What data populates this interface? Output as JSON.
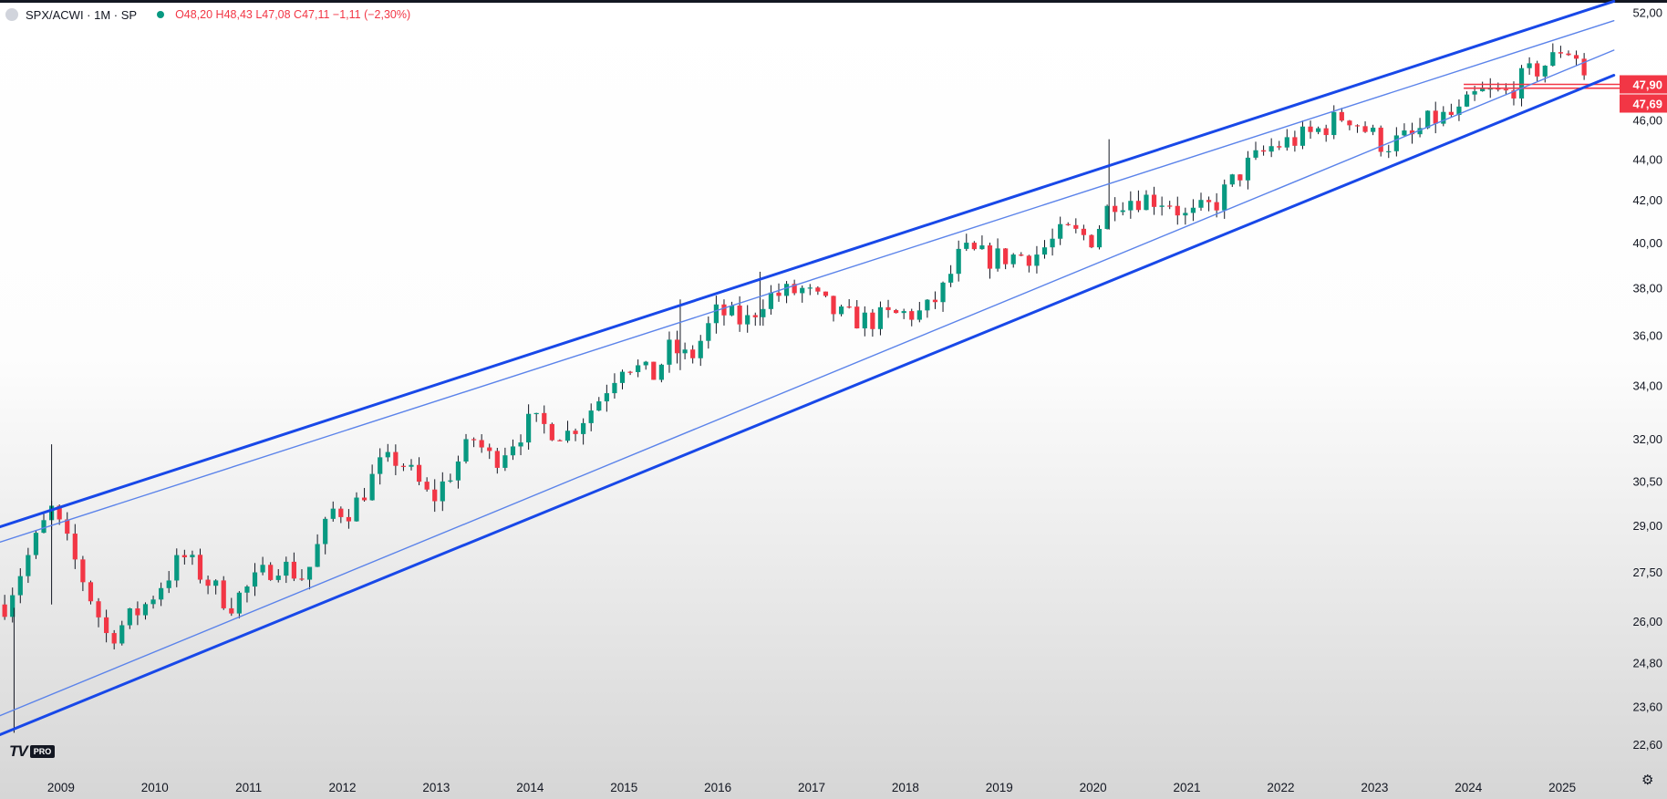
{
  "legend": {
    "symbol": "SPX/ACWI · 1M · SP",
    "ohlc": "O48,20 H48,43 L47,08 C47,11 −1,11 (−2,30%)"
  },
  "logo": {
    "mark": "TV",
    "badge": "PRO"
  },
  "chart_data": {
    "type": "candlestick",
    "y_scale": "log",
    "ylim": [
      22.0,
      52.4
    ],
    "xlim": [
      2008.35,
      2025.65
    ],
    "y_ticks": [
      "52,00",
      "47,90",
      "47,69",
      "46,00",
      "44,00",
      "42,00",
      "40,00",
      "38,00",
      "36,00",
      "34,00",
      "32,00",
      "30,50",
      "29,00",
      "27,50",
      "26,00",
      "24,80",
      "23,60",
      "22,60"
    ],
    "y_tick_values": [
      52.0,
      47.9,
      47.69,
      46.0,
      44.0,
      42.0,
      40.0,
      38.0,
      36.0,
      34.0,
      32.0,
      30.5,
      29.0,
      27.5,
      26.0,
      24.8,
      23.6,
      22.6
    ],
    "highlighted_labels": [
      {
        "text": "47,90",
        "value": 47.9
      },
      {
        "text": "47,69",
        "value": 47.69
      }
    ],
    "horizontal_levels": [
      47.9,
      47.69
    ],
    "horizontal_levels_start": 2023.95,
    "x_ticks": [
      "2009",
      "2010",
      "2011",
      "2012",
      "2013",
      "2014",
      "2015",
      "2016",
      "2017",
      "2018",
      "2019",
      "2020",
      "2021",
      "2022",
      "2023",
      "2024",
      "2025"
    ],
    "x_tick_values": [
      2009,
      2010,
      2011,
      2012,
      2013,
      2014,
      2015,
      2016,
      2017,
      2018,
      2019,
      2020,
      2021,
      2022,
      2023,
      2024,
      2025
    ],
    "close_path": [
      [
        2008.4,
        26.5
      ],
      [
        2008.9,
        29.5
      ],
      [
        2009.2,
        27.5
      ],
      [
        2009.5,
        25.5
      ],
      [
        2009.9,
        26.5
      ],
      [
        2010.3,
        28.0
      ],
      [
        2010.8,
        26.5
      ],
      [
        2011.3,
        27.8
      ],
      [
        2011.6,
        27.3
      ],
      [
        2011.9,
        29.5
      ],
      [
        2012.1,
        29.5
      ],
      [
        2012.4,
        31.0
      ],
      [
        2012.6,
        31.3
      ],
      [
        2012.95,
        29.8
      ],
      [
        2013.4,
        32.0
      ],
      [
        2013.6,
        31.2
      ],
      [
        2014.0,
        32.6
      ],
      [
        2014.4,
        32.2
      ],
      [
        2014.7,
        33.3
      ],
      [
        2015.0,
        35.0
      ],
      [
        2015.3,
        34.3
      ],
      [
        2015.5,
        35.5
      ],
      [
        2015.7,
        35.0
      ],
      [
        2016.0,
        37.0
      ],
      [
        2016.3,
        36.5
      ],
      [
        2016.5,
        37.6
      ],
      [
        2016.9,
        37.9
      ],
      [
        2017.3,
        36.8
      ],
      [
        2017.6,
        36.6
      ],
      [
        2018.0,
        36.9
      ],
      [
        2018.2,
        36.9
      ],
      [
        2018.4,
        37.9
      ],
      [
        2018.6,
        39.6
      ],
      [
        2018.9,
        39.3
      ],
      [
        2019.4,
        39.5
      ],
      [
        2019.7,
        40.5
      ],
      [
        2020.0,
        40.2
      ],
      [
        2020.2,
        42.0
      ],
      [
        2020.5,
        42.1
      ],
      [
        2020.8,
        42.0
      ],
      [
        2021.0,
        41.1
      ],
      [
        2021.3,
        41.8
      ],
      [
        2021.6,
        43.5
      ],
      [
        2021.9,
        44.6
      ],
      [
        2022.3,
        45.2
      ],
      [
        2022.7,
        46.3
      ],
      [
        2022.9,
        45.5
      ],
      [
        2023.1,
        44.7
      ],
      [
        2023.4,
        45.1
      ],
      [
        2023.6,
        46.0
      ],
      [
        2023.9,
        46.3
      ],
      [
        2024.1,
        47.4
      ],
      [
        2024.4,
        47.4
      ],
      [
        2024.6,
        48.3
      ],
      [
        2024.9,
        49.3
      ],
      [
        2025.0,
        50.0
      ],
      [
        2025.15,
        49.5
      ],
      [
        2025.3,
        47.5
      ]
    ],
    "extra_wicks": [
      {
        "t": 2008.5,
        "low": 22.9,
        "high": 26.4
      },
      {
        "t": 2008.9,
        "low": 26.5,
        "high": 31.8
      },
      {
        "t": 2015.6,
        "low": 34.6,
        "high": 37.5
      },
      {
        "t": 2016.45,
        "low": 36.4,
        "high": 38.7
      },
      {
        "t": 2020.17,
        "low": 40.6,
        "high": 45.0
      }
    ],
    "trendlines": [
      {
        "points": [
          [
            2008.35,
            28.95
          ],
          [
            2025.55,
            52.65
          ]
        ],
        "style": "thick"
      },
      {
        "points": [
          [
            2008.35,
            28.45
          ],
          [
            2025.55,
            51.5
          ]
        ],
        "style": "thin"
      },
      {
        "points": [
          [
            2008.35,
            23.35
          ],
          [
            2025.55,
            49.8
          ]
        ],
        "style": "thin"
      },
      {
        "points": [
          [
            2008.35,
            22.85
          ],
          [
            2025.55,
            48.4
          ]
        ],
        "style": "thick"
      }
    ],
    "colors": {
      "up": "#089981",
      "down": "#f23645",
      "trend": "#1848e8",
      "trend_thin": "#5b83ea",
      "axis_text": "#131722"
    }
  }
}
